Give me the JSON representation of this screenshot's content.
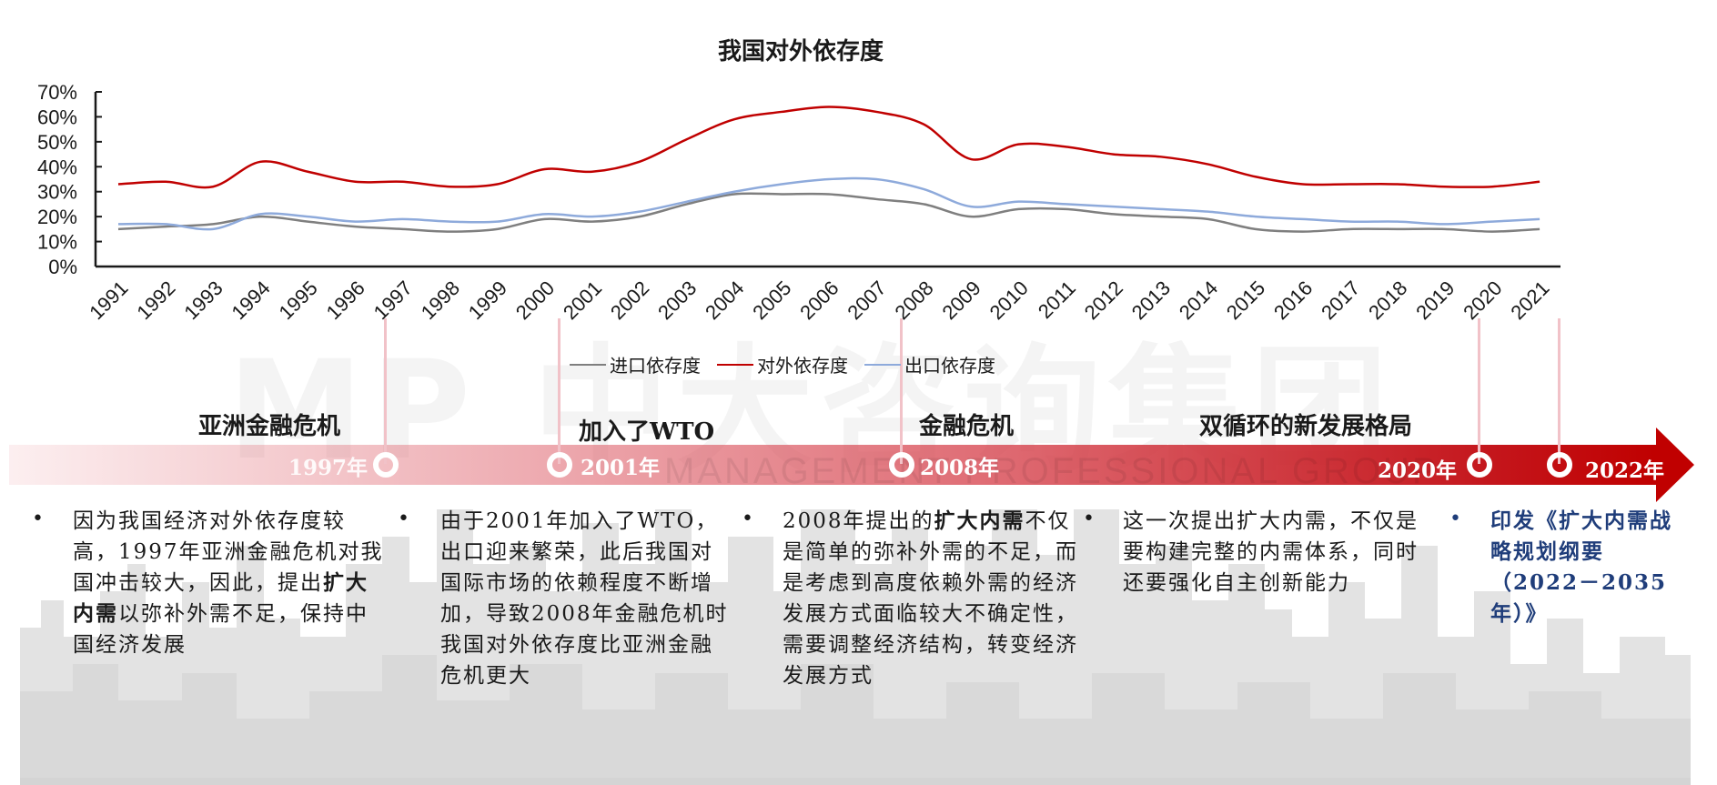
{
  "chart_data": {
    "type": "line",
    "title": "我国对外依存度",
    "xlabel": "",
    "ylabel": "",
    "ylim": [
      0,
      0.7
    ],
    "yticks": [
      "0%",
      "10%",
      "20%",
      "30%",
      "40%",
      "50%",
      "60%",
      "70%"
    ],
    "grid": false,
    "legend_position": "bottom",
    "x": [
      "1991",
      "1992",
      "1993",
      "1994",
      "1995",
      "1996",
      "1997",
      "1998",
      "1999",
      "2000",
      "2001",
      "2002",
      "2003",
      "2004",
      "2005",
      "2006",
      "2007",
      "2008",
      "2009",
      "2010",
      "2011",
      "2012",
      "2013",
      "2014",
      "2015",
      "2016",
      "2017",
      "2018",
      "2019",
      "2020",
      "2021"
    ],
    "series": [
      {
        "name": "进口依存度",
        "color": "#7f7f7f",
        "values": [
          0.15,
          0.16,
          0.17,
          0.2,
          0.18,
          0.16,
          0.15,
          0.14,
          0.15,
          0.19,
          0.18,
          0.2,
          0.25,
          0.29,
          0.29,
          0.29,
          0.27,
          0.25,
          0.2,
          0.23,
          0.23,
          0.21,
          0.2,
          0.19,
          0.15,
          0.14,
          0.15,
          0.15,
          0.15,
          0.14,
          0.15
        ]
      },
      {
        "name": "对外依存度",
        "color": "#c00000",
        "values": [
          0.33,
          0.34,
          0.32,
          0.42,
          0.38,
          0.34,
          0.34,
          0.32,
          0.33,
          0.39,
          0.38,
          0.42,
          0.51,
          0.59,
          0.62,
          0.64,
          0.62,
          0.57,
          0.43,
          0.49,
          0.48,
          0.45,
          0.44,
          0.41,
          0.36,
          0.33,
          0.33,
          0.33,
          0.32,
          0.32,
          0.34
        ]
      },
      {
        "name": "出口依存度",
        "color": "#8eaadb",
        "values": [
          0.17,
          0.17,
          0.15,
          0.21,
          0.2,
          0.18,
          0.19,
          0.18,
          0.18,
          0.21,
          0.2,
          0.22,
          0.26,
          0.3,
          0.33,
          0.35,
          0.35,
          0.31,
          0.24,
          0.26,
          0.25,
          0.24,
          0.23,
          0.22,
          0.2,
          0.19,
          0.18,
          0.18,
          0.17,
          0.18,
          0.19
        ]
      }
    ]
  },
  "chart": {
    "title": "我国对外依存度",
    "legend": [
      {
        "label": "进口依存度",
        "color": "#7f7f7f"
      },
      {
        "label": "对外依存度",
        "color": "#c00000"
      },
      {
        "label": "出口依存度",
        "color": "#8eaadb"
      }
    ]
  },
  "watermark": {
    "logo_text": "MP 中大咨询集团",
    "subtitle": "MANAGEMENT PROFESSIONAL GROUP"
  },
  "timeline": {
    "events": [
      {
        "title": "亚洲金融危机",
        "year": "1997年"
      },
      {
        "title": "加入了WTO",
        "year": "2001年"
      },
      {
        "title": "金融危机",
        "year": "2008年"
      },
      {
        "title": "双循环的新发展格局",
        "year": "2020年"
      },
      {
        "title": "",
        "year": "2022年"
      }
    ],
    "notes": [
      {
        "pre": "因为我国经济对外依存度较高，1997年亚洲金融危机对我国冲击较大，因此，提出",
        "bold": "扩大内需",
        "post": "以弥补外需不足，保持中国经济发展"
      },
      {
        "pre": "由于2001年加入了WTO，出口迎来繁荣，此后我国对国际市场的依赖程度不断增加，导致2008年金融危机时我国对外依存度比亚洲金融危机更大",
        "bold": "",
        "post": ""
      },
      {
        "pre": "2008年提出的",
        "bold": "扩大内需",
        "post": "不仅是简单的弥补外需的不足，而是考虑到高度依赖外需的经济发展方式面临较大不确定性，需要调整经济结构，转变经济发展方式"
      },
      {
        "pre": "这一次提出扩大内需，不仅是要构建完整的内需体系，同时还要强化自主创新能力",
        "bold": "",
        "post": ""
      },
      {
        "pre": "印发《扩大内需战略规划纲要（2022－2035年）》",
        "bold": "",
        "post": ""
      }
    ],
    "bullet": "•"
  }
}
